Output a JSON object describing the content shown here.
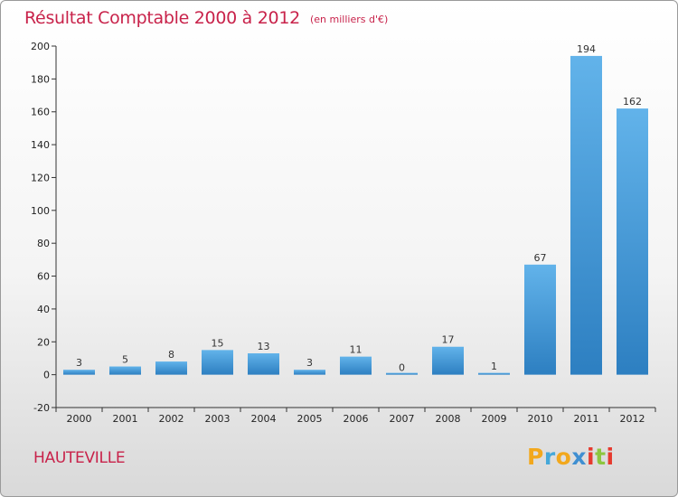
{
  "header": {
    "title": "Résultat Comptable 2000 à 2012",
    "subtitle": "(en milliers d'€)"
  },
  "footer": {
    "commune": "HAUTEVILLE",
    "logo_letters": [
      "P",
      "r",
      "o",
      "x",
      "i",
      "t",
      "i"
    ]
  },
  "colors": {
    "title": "#c8224a",
    "bar_light": "#62b3ea",
    "bar_dark": "#2d7fc1",
    "logo": [
      "#f2a81d",
      "#45a8d9",
      "#f2a81d",
      "#3f8fd1",
      "#e63a2e",
      "#8dc63f",
      "#e63a2e"
    ]
  },
  "chart_data": {
    "type": "bar",
    "title": "Résultat Comptable 2000 à 2012",
    "subtitle": "(en milliers d'€)",
    "categories": [
      "2000",
      "2001",
      "2002",
      "2003",
      "2004",
      "2005",
      "2006",
      "2007",
      "2008",
      "2009",
      "2010",
      "2011",
      "2012"
    ],
    "values": [
      3,
      5,
      8,
      15,
      13,
      3,
      11,
      0,
      17,
      1,
      67,
      194,
      162
    ],
    "data_labels": [
      "3",
      "5",
      "8",
      "15",
      "13",
      "3",
      "11",
      "0",
      "17",
      "1",
      "67",
      "194",
      "162"
    ],
    "ylim": [
      -20,
      200
    ],
    "yticks": [
      -20,
      0,
      20,
      40,
      60,
      80,
      100,
      120,
      140,
      160,
      180,
      200
    ],
    "ytick_labels": [
      "-20",
      "0",
      "20",
      "40",
      "60",
      "80",
      "100",
      "120",
      "140",
      "160",
      "180",
      "200"
    ],
    "grid": false,
    "legend": "none"
  }
}
